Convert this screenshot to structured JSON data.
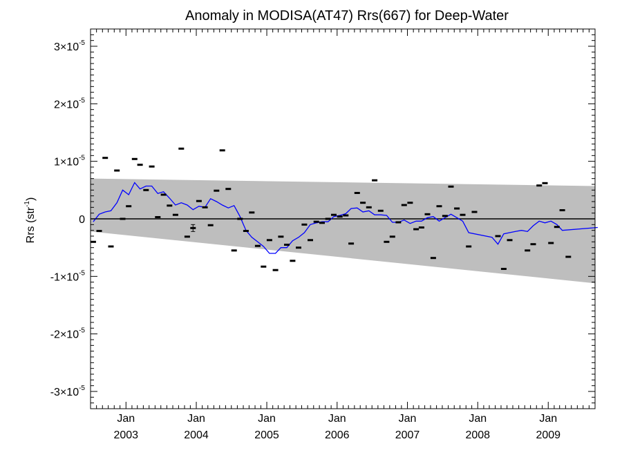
{
  "chart_data": {
    "type": "scatter",
    "title": "Anomaly in MODISA(AT47) Rrs(667) for Deep-Water",
    "ylabel": "Rrs (str",
    "ylabel_sup": "-1",
    "ylabel_close": ")",
    "xlabel": "",
    "xlim": [
      "2002-07-01",
      "2009-09-01"
    ],
    "ylim": [
      -3.3e-05,
      3.3e-05
    ],
    "y_ticks": [
      {
        "value": 3e-05,
        "mantissa": "3×10",
        "exp": "-5"
      },
      {
        "value": 2e-05,
        "mantissa": "2×10",
        "exp": "-5"
      },
      {
        "value": 1e-05,
        "mantissa": "1×10",
        "exp": "-5"
      },
      {
        "value": 0,
        "mantissa": "0",
        "exp": ""
      },
      {
        "value": -1e-05,
        "mantissa": "-1×10",
        "exp": "-5"
      },
      {
        "value": -2e-05,
        "mantissa": "-2×10",
        "exp": "-5"
      },
      {
        "value": -3e-05,
        "mantissa": "-3×10",
        "exp": "-5"
      }
    ],
    "x_ticks": [
      {
        "date": "2003-01-01",
        "month": "Jan",
        "year": "2003"
      },
      {
        "date": "2004-01-01",
        "month": "Jan",
        "year": "2004"
      },
      {
        "date": "2005-01-01",
        "month": "Jan",
        "year": "2005"
      },
      {
        "date": "2006-01-01",
        "month": "Jan",
        "year": "2006"
      },
      {
        "date": "2007-01-01",
        "month": "Jan",
        "year": "2007"
      },
      {
        "date": "2008-01-01",
        "month": "Jan",
        "year": "2008"
      },
      {
        "date": "2009-01-01",
        "month": "Jan",
        "year": "2009"
      }
    ],
    "band": {
      "color": "#bebebe",
      "upper": [
        [
          "2002-07-01",
          7e-06
        ],
        [
          "2009-09-01",
          5.7e-06
        ]
      ],
      "lower": [
        [
          "2002-07-01",
          -2.2e-06
        ],
        [
          "2009-09-01",
          -1.12e-05
        ]
      ]
    },
    "zero_line": {
      "value": 0,
      "color": "#000000"
    },
    "series": [
      {
        "kind": "monthly_points",
        "color": "#000000",
        "points": [
          [
            "2002-07",
            -4e-06
          ],
          [
            "2002-08",
            -2.1e-06
          ],
          [
            "2002-09",
            1.06e-05
          ],
          [
            "2002-10",
            -4.8e-06
          ],
          [
            "2002-11",
            8.4e-06
          ],
          [
            "2002-12",
            0.0
          ],
          [
            "2003-01",
            2.2e-06
          ],
          [
            "2003-02",
            1.04e-05
          ],
          [
            "2003-03",
            9.4e-06
          ],
          [
            "2003-04",
            5e-06
          ],
          [
            "2003-05",
            9.1e-06
          ],
          [
            "2003-06",
            3e-07
          ],
          [
            "2003-07",
            4.2e-06
          ],
          [
            "2003-08",
            2.3e-06
          ],
          [
            "2003-09",
            7e-07
          ],
          [
            "2003-10",
            1.22e-05
          ],
          [
            "2003-11",
            -3.1e-06
          ],
          [
            "2003-12",
            -1.6e-06
          ],
          [
            "2004-01",
            3.1e-06
          ],
          [
            "2004-02",
            2e-06
          ],
          [
            "2004-03",
            -1.1e-06
          ],
          [
            "2004-04",
            4.9e-06
          ],
          [
            "2004-05",
            1.19e-05
          ],
          [
            "2004-06",
            5.2e-06
          ],
          [
            "2004-07",
            -5.5e-06
          ],
          [
            "2004-08",
            0.0
          ],
          [
            "2004-09",
            -2.1e-06
          ],
          [
            "2004-10",
            1.1e-06
          ],
          [
            "2004-11",
            -4.7e-06
          ],
          [
            "2004-12",
            -8.3e-06
          ],
          [
            "2005-01",
            -3.7e-06
          ],
          [
            "2005-02",
            -8.9e-06
          ],
          [
            "2005-03",
            -3.1e-06
          ],
          [
            "2005-04",
            -4.5e-06
          ],
          [
            "2005-05",
            -7.3e-06
          ],
          [
            "2005-06",
            -5e-06
          ],
          [
            "2005-07",
            -1e-06
          ],
          [
            "2005-08",
            -3.7e-06
          ],
          [
            "2005-09",
            -5e-07
          ],
          [
            "2005-10",
            -7e-07
          ],
          [
            "2005-11",
            0.0
          ],
          [
            "2005-12",
            7e-07
          ],
          [
            "2006-01",
            4e-07
          ],
          [
            "2006-02",
            6e-07
          ],
          [
            "2006-03",
            -4.3e-06
          ],
          [
            "2006-04",
            4.5e-06
          ],
          [
            "2006-05",
            2.8e-06
          ],
          [
            "2006-06",
            2e-06
          ],
          [
            "2006-07",
            6.7e-06
          ],
          [
            "2006-08",
            1.4e-06
          ],
          [
            "2006-09",
            -4e-06
          ],
          [
            "2006-10",
            -3.1e-06
          ],
          [
            "2006-11",
            -6e-07
          ],
          [
            "2006-12",
            2.4e-06
          ],
          [
            "2007-01",
            2.8e-06
          ],
          [
            "2007-02",
            -1.8e-06
          ],
          [
            "2007-03",
            -1.5e-06
          ],
          [
            "2007-04",
            8e-07
          ],
          [
            "2007-05",
            -6.8e-06
          ],
          [
            "2007-06",
            2.2e-06
          ],
          [
            "2007-07",
            5e-07
          ],
          [
            "2007-08",
            5.6e-06
          ],
          [
            "2007-09",
            1.8e-06
          ],
          [
            "2007-10",
            7e-07
          ],
          [
            "2007-11",
            -4.8e-06
          ],
          [
            "2007-12",
            1.2e-06
          ],
          [
            "2008-04",
            -3e-06
          ],
          [
            "2008-05",
            -8.7e-06
          ],
          [
            "2008-06",
            -3.7e-06
          ],
          [
            "2008-09",
            -5.5e-06
          ],
          [
            "2008-10",
            -4.4e-06
          ],
          [
            "2008-11",
            5.8e-06
          ],
          [
            "2008-12",
            6.2e-06
          ],
          [
            "2009-01",
            -4.2e-06
          ],
          [
            "2009-02",
            -1.4e-06
          ],
          [
            "2009-03",
            1.5e-06
          ],
          [
            "2009-04",
            -6.6e-06
          ],
          [
            "2009-09",
            -2.8e-06
          ]
        ],
        "error_bar": {
          "date": "2003-12",
          "value": -1.6e-06,
          "half_range": 6e-07
        }
      },
      {
        "kind": "smoothed_line",
        "color": "#0000ff",
        "points": [
          [
            "2002-07",
            -5e-07
          ],
          [
            "2002-08",
            8e-07
          ],
          [
            "2002-09",
            1.2e-06
          ],
          [
            "2002-10",
            1.4e-06
          ],
          [
            "2002-11",
            2.8e-06
          ],
          [
            "2002-12",
            5e-06
          ],
          [
            "2003-01",
            4.2e-06
          ],
          [
            "2003-02",
            6.3e-06
          ],
          [
            "2003-03",
            5.2e-06
          ],
          [
            "2003-04",
            5.7e-06
          ],
          [
            "2003-05",
            5.7e-06
          ],
          [
            "2003-06",
            4.4e-06
          ],
          [
            "2003-07",
            4.7e-06
          ],
          [
            "2003-08",
            3.6e-06
          ],
          [
            "2003-09",
            2.4e-06
          ],
          [
            "2003-10",
            2.8e-06
          ],
          [
            "2003-11",
            2.4e-06
          ],
          [
            "2003-12",
            1.6e-06
          ],
          [
            "2004-01",
            2.2e-06
          ],
          [
            "2004-02",
            2e-06
          ],
          [
            "2004-03",
            3.5e-06
          ],
          [
            "2004-04",
            3e-06
          ],
          [
            "2004-05",
            2.4e-06
          ],
          [
            "2004-06",
            1.9e-06
          ],
          [
            "2004-07",
            2.3e-06
          ],
          [
            "2004-08",
            4e-07
          ],
          [
            "2004-09",
            -2e-06
          ],
          [
            "2004-10",
            -3.2e-06
          ],
          [
            "2004-11",
            -4e-06
          ],
          [
            "2004-12",
            -4.8e-06
          ],
          [
            "2005-01",
            -6e-06
          ],
          [
            "2005-02",
            -6e-06
          ],
          [
            "2005-03",
            -5e-06
          ],
          [
            "2005-04",
            -5e-06
          ],
          [
            "2005-05",
            -3.8e-06
          ],
          [
            "2005-06",
            -3.2e-06
          ],
          [
            "2005-07",
            -2.4e-06
          ],
          [
            "2005-08",
            -1e-06
          ],
          [
            "2005-09",
            -7e-07
          ],
          [
            "2005-10",
            -5e-07
          ],
          [
            "2005-11",
            -5e-07
          ],
          [
            "2005-12",
            4e-07
          ],
          [
            "2006-01",
            6e-07
          ],
          [
            "2006-02",
            9e-07
          ],
          [
            "2006-03",
            1.8e-06
          ],
          [
            "2006-04",
            1.9e-06
          ],
          [
            "2006-05",
            1.2e-06
          ],
          [
            "2006-06",
            1.4e-06
          ],
          [
            "2006-07",
            7e-07
          ],
          [
            "2006-08",
            7e-07
          ],
          [
            "2006-09",
            6e-07
          ],
          [
            "2006-10",
            -6e-07
          ],
          [
            "2006-11",
            -6e-07
          ],
          [
            "2006-12",
            -2e-07
          ],
          [
            "2007-01",
            -8e-07
          ],
          [
            "2007-02",
            -4e-07
          ],
          [
            "2007-03",
            -4e-07
          ],
          [
            "2007-04",
            2e-07
          ],
          [
            "2007-05",
            4e-07
          ],
          [
            "2007-06",
            -4e-07
          ],
          [
            "2007-07",
            2e-07
          ],
          [
            "2007-08",
            8e-07
          ],
          [
            "2007-09",
            2e-07
          ],
          [
            "2007-10",
            -4e-07
          ],
          [
            "2007-11",
            -2.4e-06
          ],
          [
            "2008-03",
            -3.2e-06
          ],
          [
            "2008-04",
            -4.4e-06
          ],
          [
            "2008-05",
            -2.6e-06
          ],
          [
            "2008-07",
            -2.2e-06
          ],
          [
            "2008-08",
            -2e-06
          ],
          [
            "2008-09",
            -2.2e-06
          ],
          [
            "2008-10",
            -1.2e-06
          ],
          [
            "2008-11",
            -4e-07
          ],
          [
            "2008-12",
            -7e-07
          ],
          [
            "2009-01",
            -4e-07
          ],
          [
            "2009-02",
            -1e-06
          ],
          [
            "2009-03",
            -2e-06
          ],
          [
            "2009-09",
            -1.5e-06
          ]
        ]
      }
    ]
  }
}
